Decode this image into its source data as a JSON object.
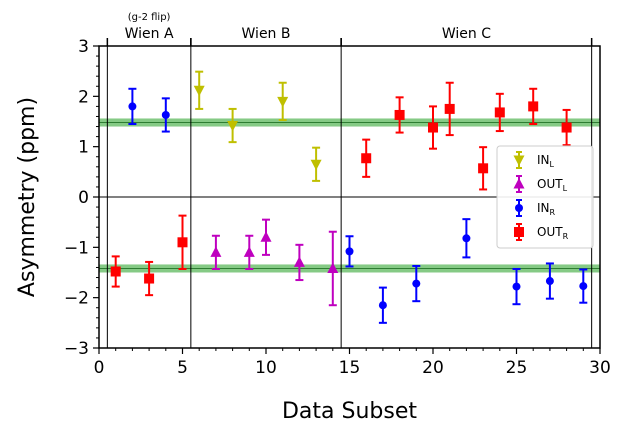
{
  "chart_data": {
    "type": "scatter",
    "title": "",
    "xlabel": "Data Subset",
    "ylabel": "Asymmetry (ppm)",
    "xlim": [
      0,
      30
    ],
    "ylim": [
      -3,
      3
    ],
    "xticks": [
      0,
      5,
      10,
      15,
      20,
      25,
      30
    ],
    "yticks": [
      -3,
      -2,
      -1,
      0,
      1,
      2,
      3
    ],
    "grid": false,
    "legend_position": "right",
    "groups": [
      {
        "name": "Wien A",
        "note": "(g-2 flip)",
        "x_start": 0.5,
        "x_end": 5.5
      },
      {
        "name": "Wien B",
        "x_start": 5.5,
        "x_end": 14.5
      },
      {
        "name": "Wien C",
        "x_start": 14.5,
        "x_end": 29.5
      }
    ],
    "bands": [
      {
        "center": 1.48,
        "half_width": 0.08,
        "color": "#5cb85c"
      },
      {
        "center": -1.42,
        "half_width": 0.08,
        "color": "#5cb85c"
      }
    ],
    "series": [
      {
        "name": "IN",
        "name_sub": "L",
        "color": "#bfbf00",
        "marker": "triangle-down",
        "points": [
          {
            "x": 6,
            "y": 2.12,
            "err": 0.37
          },
          {
            "x": 8,
            "y": 1.42,
            "err": 0.33
          },
          {
            "x": 11,
            "y": 1.9,
            "err": 0.37
          },
          {
            "x": 13,
            "y": 0.65,
            "err": 0.33
          }
        ]
      },
      {
        "name": "OUT",
        "name_sub": "L",
        "color": "#bf00bf",
        "marker": "triangle-up",
        "points": [
          {
            "x": 7,
            "y": -1.1,
            "err": 0.33
          },
          {
            "x": 9,
            "y": -1.1,
            "err": 0.33
          },
          {
            "x": 10,
            "y": -0.8,
            "err": 0.35
          },
          {
            "x": 12,
            "y": -1.3,
            "err": 0.35
          },
          {
            "x": 14,
            "y": -1.42,
            "err": 0.73
          }
        ]
      },
      {
        "name": "IN",
        "name_sub": "R",
        "color": "#0000ff",
        "marker": "circle",
        "points": [
          {
            "x": 2,
            "y": 1.8,
            "err": 0.35
          },
          {
            "x": 4,
            "y": 1.63,
            "err": 0.33
          },
          {
            "x": 15,
            "y": -1.08,
            "err": 0.3
          },
          {
            "x": 17,
            "y": -2.15,
            "err": 0.35
          },
          {
            "x": 19,
            "y": -1.72,
            "err": 0.35
          },
          {
            "x": 22,
            "y": -0.82,
            "err": 0.38
          },
          {
            "x": 25,
            "y": -1.78,
            "err": 0.35
          },
          {
            "x": 27,
            "y": -1.67,
            "err": 0.35
          },
          {
            "x": 29,
            "y": -1.77,
            "err": 0.33
          }
        ]
      },
      {
        "name": "OUT",
        "name_sub": "R",
        "color": "#ff0000",
        "marker": "square",
        "points": [
          {
            "x": 1,
            "y": -1.48,
            "err": 0.3
          },
          {
            "x": 3,
            "y": -1.62,
            "err": 0.33
          },
          {
            "x": 5,
            "y": -0.9,
            "err": 0.53
          },
          {
            "x": 16,
            "y": 0.77,
            "err": 0.37
          },
          {
            "x": 18,
            "y": 1.63,
            "err": 0.35
          },
          {
            "x": 20,
            "y": 1.38,
            "err": 0.42
          },
          {
            "x": 21,
            "y": 1.75,
            "err": 0.52
          },
          {
            "x": 23,
            "y": 0.57,
            "err": 0.42
          },
          {
            "x": 24,
            "y": 1.68,
            "err": 0.37
          },
          {
            "x": 26,
            "y": 1.8,
            "err": 0.35
          },
          {
            "x": 28,
            "y": 1.38,
            "err": 0.35
          }
        ]
      }
    ]
  }
}
